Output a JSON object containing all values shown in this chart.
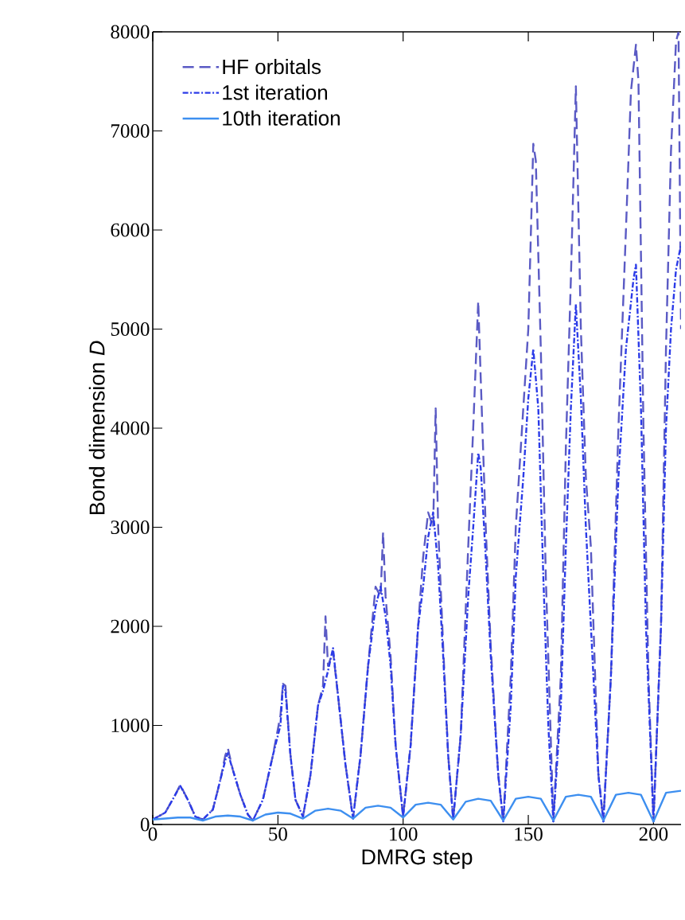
{
  "chart_data": {
    "type": "line",
    "xlabel": "DMRG step",
    "ylabel": "Bond dimension *D*",
    "xlim": [
      0,
      211
    ],
    "ylim": [
      0,
      8000
    ],
    "xticks": [
      0,
      50,
      100,
      150,
      200
    ],
    "yticks": [
      0,
      1000,
      2000,
      3000,
      4000,
      5000,
      6000,
      7000,
      8000
    ],
    "grid": false,
    "legend": "top left",
    "marker": "none",
    "series": [
      {
        "name": "HF orbitals",
        "color": "#5a5ac4",
        "line_style": "dashed",
        "x": [
          0,
          5,
          9,
          11,
          14,
          17,
          20,
          24,
          27,
          29,
          30,
          32,
          35,
          38,
          40,
          44,
          48,
          51,
          52,
          53,
          55,
          57,
          60,
          63,
          66,
          68,
          69,
          70,
          72,
          74,
          77,
          80,
          83,
          86,
          89,
          91,
          92,
          93,
          95,
          97,
          100,
          103,
          106,
          108,
          110,
          112,
          113,
          114,
          116,
          118,
          120,
          123,
          126,
          128,
          130,
          131,
          133,
          135,
          138,
          140,
          143,
          145,
          147,
          150,
          152,
          153,
          155,
          157,
          160,
          163,
          165,
          167,
          169,
          171,
          173,
          175,
          178,
          180,
          183,
          186,
          189,
          191,
          193,
          194,
          196,
          198,
          200,
          203,
          205,
          207,
          209,
          210,
          211
        ],
        "values": [
          50,
          120,
          300,
          400,
          250,
          80,
          50,
          150,
          450,
          700,
          770,
          550,
          300,
          100,
          40,
          250,
          700,
          1100,
          1420,
          1400,
          700,
          250,
          80,
          500,
          1200,
          1400,
          2100,
          1600,
          1750,
          1300,
          600,
          60,
          700,
          1600,
          2400,
          2300,
          2950,
          2300,
          1700,
          800,
          80,
          800,
          2000,
          2700,
          3150,
          3000,
          4200,
          3000,
          1800,
          700,
          50,
          900,
          2800,
          4000,
          5280,
          4500,
          3000,
          1800,
          500,
          30,
          1500,
          3000,
          3800,
          5000,
          6870,
          6700,
          4800,
          2500,
          30,
          1500,
          3800,
          5500,
          7450,
          5000,
          3500,
          2800,
          500,
          30,
          1500,
          4000,
          6000,
          7400,
          7870,
          7500,
          4000,
          1500,
          30,
          2000,
          4800,
          6800,
          7900,
          8000,
          5000
        ]
      },
      {
        "name": "1st iteration",
        "color": "#2b3be8",
        "line_style": "dashdot",
        "x": [
          0,
          5,
          9,
          11,
          14,
          17,
          20,
          24,
          27,
          29,
          30,
          32,
          35,
          38,
          40,
          44,
          48,
          51,
          52,
          53,
          55,
          57,
          60,
          63,
          66,
          68,
          70,
          72,
          74,
          77,
          80,
          83,
          86,
          89,
          91,
          93,
          95,
          97,
          100,
          103,
          106,
          108,
          110,
          112,
          114,
          116,
          118,
          120,
          123,
          126,
          128,
          130,
          131,
          133,
          135,
          138,
          140,
          143,
          145,
          148,
          150,
          152,
          154,
          156,
          158,
          160,
          163,
          165,
          167,
          169,
          171,
          173,
          175,
          178,
          180,
          183,
          186,
          189,
          192,
          193,
          195,
          197,
          200,
          203,
          205,
          207,
          209,
          211
        ],
        "values": [
          50,
          120,
          300,
          390,
          250,
          80,
          50,
          150,
          450,
          650,
          720,
          550,
          300,
          100,
          40,
          250,
          700,
          1000,
          1400,
          1350,
          700,
          250,
          80,
          500,
          1200,
          1350,
          1550,
          1780,
          1300,
          600,
          60,
          700,
          1600,
          2200,
          2400,
          2100,
          1600,
          800,
          80,
          800,
          2000,
          2400,
          2900,
          3150,
          2600,
          1700,
          700,
          50,
          900,
          2300,
          3000,
          3750,
          3600,
          2700,
          1700,
          500,
          30,
          1200,
          2500,
          3500,
          4300,
          4800,
          4200,
          2500,
          1000,
          30,
          1200,
          2800,
          4200,
          5250,
          4300,
          3000,
          2000,
          500,
          30,
          1500,
          3500,
          4800,
          5500,
          5650,
          4200,
          2000,
          30,
          2000,
          4000,
          5000,
          5600,
          5850
        ]
      },
      {
        "name": "10th iteration",
        "color": "#3d8ff0",
        "line_style": "solid",
        "x": [
          0,
          5,
          10,
          15,
          20,
          25,
          30,
          35,
          40,
          45,
          50,
          55,
          60,
          65,
          70,
          75,
          80,
          85,
          90,
          95,
          100,
          105,
          110,
          115,
          120,
          125,
          130,
          135,
          140,
          145,
          150,
          155,
          160,
          165,
          170,
          175,
          180,
          185,
          190,
          195,
          200,
          205,
          211
        ],
        "values": [
          50,
          60,
          70,
          70,
          40,
          80,
          90,
          80,
          40,
          100,
          120,
          110,
          60,
          140,
          160,
          140,
          60,
          170,
          190,
          170,
          70,
          200,
          220,
          200,
          50,
          230,
          260,
          240,
          40,
          260,
          280,
          260,
          40,
          280,
          300,
          280,
          40,
          300,
          320,
          300,
          30,
          320,
          340
        ]
      }
    ]
  }
}
